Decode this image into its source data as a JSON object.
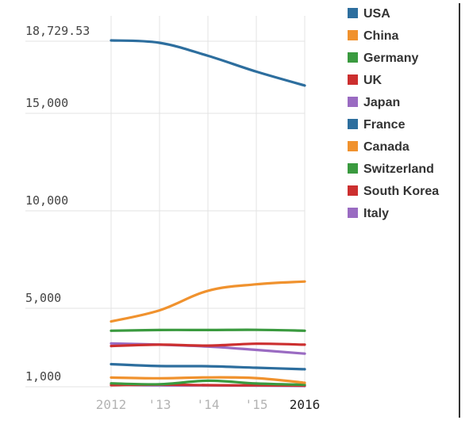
{
  "chart_data": {
    "type": "line",
    "x": [
      "2012",
      "'13",
      "'14",
      "'15",
      "2016"
    ],
    "y_ticks": [
      "18,729.53",
      "15,000",
      "10,000",
      "5,000",
      "1,000"
    ],
    "ylim": [
      0,
      18729.53
    ],
    "grid": true,
    "legend_position": "right",
    "series": [
      {
        "name": "USA",
        "color": "#2d6e9e",
        "values": [
          18729.53,
          18600,
          17900,
          17050,
          16300
        ]
      },
      {
        "name": "China",
        "color": "#f0922e",
        "values": [
          3600,
          4200,
          5250,
          5600,
          5750
        ]
      },
      {
        "name": "Germany",
        "color": "#3a9a3f",
        "values": [
          3100,
          3140,
          3140,
          3150,
          3100
        ]
      },
      {
        "name": "UK",
        "color": "#cc2f2f",
        "values": [
          2280,
          2350,
          2300,
          2400,
          2350
        ]
      },
      {
        "name": "Japan",
        "color": "#9a6bc2",
        "values": [
          2420,
          2350,
          2250,
          2070,
          1870
        ]
      },
      {
        "name": "France",
        "color": "#2d6e9e",
        "values": [
          1300,
          1200,
          1190,
          1110,
          1030
        ]
      },
      {
        "name": "Canada",
        "color": "#f0922e",
        "values": [
          580,
          540,
          590,
          550,
          300
        ]
      },
      {
        "name": "Switzerland",
        "color": "#3a9a3f",
        "values": [
          270,
          220,
          410,
          260,
          190
        ]
      },
      {
        "name": "South Korea",
        "color": "#cc2f2f",
        "values": [
          170,
          200,
          170,
          160,
          150
        ]
      },
      {
        "name": "Italy",
        "color": "#9a6bc2",
        "values": [
          210,
          160,
          160,
          150,
          130
        ]
      }
    ]
  }
}
